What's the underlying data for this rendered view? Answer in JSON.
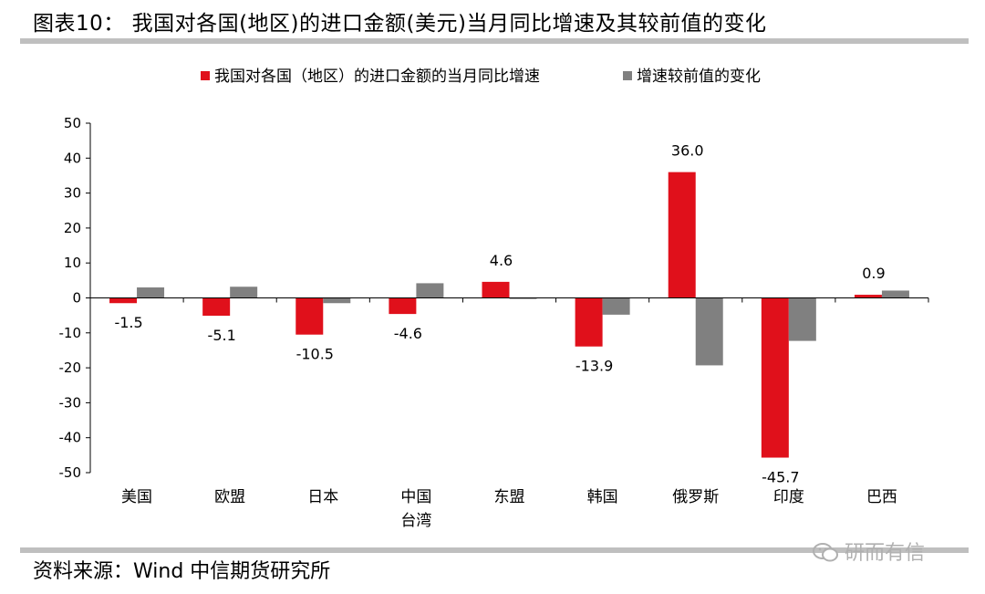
{
  "figure": {
    "title": "图表10： 我国对各国(地区)的进口金额(美元)当月同比增速及其较前值的变化",
    "source": "资料来源：Wind 中信期货研究所",
    "watermark": "研而有信"
  },
  "chart_data": {
    "type": "bar",
    "categories": [
      [
        "美国"
      ],
      [
        "欧盟"
      ],
      [
        "日本"
      ],
      [
        "中国",
        "台湾"
      ],
      [
        "东盟"
      ],
      [
        "韩国"
      ],
      [
        "俄罗斯"
      ],
      [
        "印度"
      ],
      [
        "巴西"
      ]
    ],
    "series": [
      {
        "name": "我国对各国（地区）的进口金额的当月同比增速",
        "color": "#e0101b",
        "values": [
          -1.5,
          -5.1,
          -10.5,
          -4.6,
          4.6,
          -13.9,
          36.0,
          -45.7,
          0.9
        ],
        "data_labels": [
          "-1.5",
          "-5.1",
          "-10.5",
          "-4.6",
          "4.6",
          "-13.9",
          "36.0",
          "-45.7",
          "0.9"
        ]
      },
      {
        "name": "增速较前值的变化",
        "color": "#808080",
        "values": [
          3.0,
          3.2,
          -1.5,
          4.2,
          -0.3,
          -4.8,
          -19.3,
          -12.3,
          2.1
        ]
      }
    ],
    "ylim": [
      -50,
      50
    ],
    "yticks": [
      "-50",
      "-40",
      "-30",
      "-20",
      "-10",
      "0",
      "10",
      "20",
      "30",
      "40",
      "50"
    ],
    "legend_position": "top",
    "grid": false
  }
}
